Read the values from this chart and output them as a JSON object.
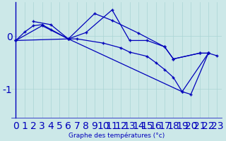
{
  "xlabel": "Graphe des températures (°c)",
  "background_color": "#cce8e8",
  "line_color": "#0000bb",
  "xlim": [
    -0.5,
    23.5
  ],
  "ylim": [
    -1.55,
    0.65
  ],
  "yticks": [
    0,
    -1
  ],
  "xticks": [
    0,
    1,
    2,
    3,
    4,
    5,
    6,
    7,
    8,
    9,
    10,
    11,
    12,
    13,
    14,
    15,
    16,
    17,
    18,
    19,
    20,
    21,
    22,
    23
  ],
  "series1_x": [
    0,
    1,
    2,
    3,
    4,
    6,
    9,
    11,
    14,
    17,
    18,
    21,
    22
  ],
  "series1_y": [
    -0.08,
    0.08,
    0.2,
    0.22,
    0.13,
    -0.05,
    0.43,
    0.3,
    0.06,
    -0.2,
    -0.43,
    -0.32,
    -0.32
  ],
  "series2_x": [
    2,
    4,
    6,
    8,
    11,
    13,
    15,
    17,
    18,
    21,
    22
  ],
  "series2_y": [
    0.28,
    0.22,
    -0.05,
    0.07,
    0.5,
    -0.08,
    -0.08,
    -0.2,
    -0.43,
    -0.32,
    -0.32
  ],
  "series3_x": [
    0,
    3,
    6,
    7,
    10,
    12,
    13,
    15,
    16,
    17,
    18,
    19,
    20,
    22
  ],
  "series3_y": [
    -0.08,
    0.2,
    -0.05,
    -0.05,
    -0.13,
    -0.22,
    -0.3,
    -0.38,
    -0.5,
    -0.63,
    -0.78,
    -1.05,
    -1.1,
    -0.32
  ],
  "series4_x": [
    0,
    6,
    19,
    22,
    23
  ],
  "series4_y": [
    -0.08,
    -0.05,
    -1.05,
    -0.32,
    -0.37
  ]
}
